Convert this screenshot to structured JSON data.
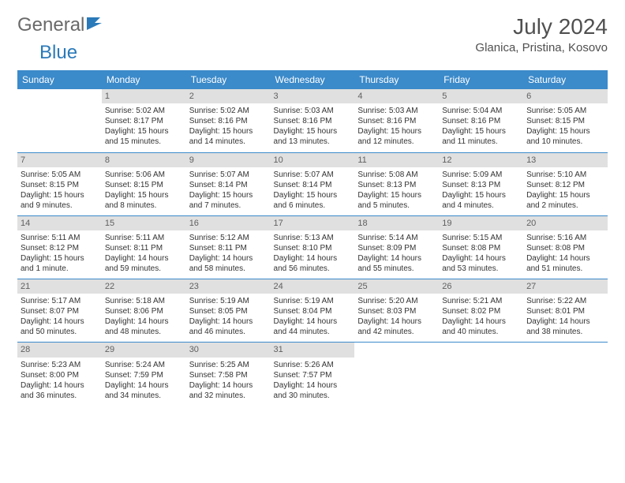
{
  "brand": {
    "part1": "General",
    "part2": "Blue"
  },
  "title": "July 2024",
  "location": "Glanica, Pristina, Kosovo",
  "colors": {
    "header_bg": "#3b8aca",
    "daynum_bg": "#e0e0e0",
    "text": "#333333",
    "border": "#3b8aca"
  },
  "day_headers": [
    "Sunday",
    "Monday",
    "Tuesday",
    "Wednesday",
    "Thursday",
    "Friday",
    "Saturday"
  ],
  "weeks": [
    [
      null,
      {
        "n": "1",
        "sr": "Sunrise: 5:02 AM",
        "ss": "Sunset: 8:17 PM",
        "d1": "Daylight: 15 hours",
        "d2": "and 15 minutes."
      },
      {
        "n": "2",
        "sr": "Sunrise: 5:02 AM",
        "ss": "Sunset: 8:16 PM",
        "d1": "Daylight: 15 hours",
        "d2": "and 14 minutes."
      },
      {
        "n": "3",
        "sr": "Sunrise: 5:03 AM",
        "ss": "Sunset: 8:16 PM",
        "d1": "Daylight: 15 hours",
        "d2": "and 13 minutes."
      },
      {
        "n": "4",
        "sr": "Sunrise: 5:03 AM",
        "ss": "Sunset: 8:16 PM",
        "d1": "Daylight: 15 hours",
        "d2": "and 12 minutes."
      },
      {
        "n": "5",
        "sr": "Sunrise: 5:04 AM",
        "ss": "Sunset: 8:16 PM",
        "d1": "Daylight: 15 hours",
        "d2": "and 11 minutes."
      },
      {
        "n": "6",
        "sr": "Sunrise: 5:05 AM",
        "ss": "Sunset: 8:15 PM",
        "d1": "Daylight: 15 hours",
        "d2": "and 10 minutes."
      }
    ],
    [
      {
        "n": "7",
        "sr": "Sunrise: 5:05 AM",
        "ss": "Sunset: 8:15 PM",
        "d1": "Daylight: 15 hours",
        "d2": "and 9 minutes."
      },
      {
        "n": "8",
        "sr": "Sunrise: 5:06 AM",
        "ss": "Sunset: 8:15 PM",
        "d1": "Daylight: 15 hours",
        "d2": "and 8 minutes."
      },
      {
        "n": "9",
        "sr": "Sunrise: 5:07 AM",
        "ss": "Sunset: 8:14 PM",
        "d1": "Daylight: 15 hours",
        "d2": "and 7 minutes."
      },
      {
        "n": "10",
        "sr": "Sunrise: 5:07 AM",
        "ss": "Sunset: 8:14 PM",
        "d1": "Daylight: 15 hours",
        "d2": "and 6 minutes."
      },
      {
        "n": "11",
        "sr": "Sunrise: 5:08 AM",
        "ss": "Sunset: 8:13 PM",
        "d1": "Daylight: 15 hours",
        "d2": "and 5 minutes."
      },
      {
        "n": "12",
        "sr": "Sunrise: 5:09 AM",
        "ss": "Sunset: 8:13 PM",
        "d1": "Daylight: 15 hours",
        "d2": "and 4 minutes."
      },
      {
        "n": "13",
        "sr": "Sunrise: 5:10 AM",
        "ss": "Sunset: 8:12 PM",
        "d1": "Daylight: 15 hours",
        "d2": "and 2 minutes."
      }
    ],
    [
      {
        "n": "14",
        "sr": "Sunrise: 5:11 AM",
        "ss": "Sunset: 8:12 PM",
        "d1": "Daylight: 15 hours",
        "d2": "and 1 minute."
      },
      {
        "n": "15",
        "sr": "Sunrise: 5:11 AM",
        "ss": "Sunset: 8:11 PM",
        "d1": "Daylight: 14 hours",
        "d2": "and 59 minutes."
      },
      {
        "n": "16",
        "sr": "Sunrise: 5:12 AM",
        "ss": "Sunset: 8:11 PM",
        "d1": "Daylight: 14 hours",
        "d2": "and 58 minutes."
      },
      {
        "n": "17",
        "sr": "Sunrise: 5:13 AM",
        "ss": "Sunset: 8:10 PM",
        "d1": "Daylight: 14 hours",
        "d2": "and 56 minutes."
      },
      {
        "n": "18",
        "sr": "Sunrise: 5:14 AM",
        "ss": "Sunset: 8:09 PM",
        "d1": "Daylight: 14 hours",
        "d2": "and 55 minutes."
      },
      {
        "n": "19",
        "sr": "Sunrise: 5:15 AM",
        "ss": "Sunset: 8:08 PM",
        "d1": "Daylight: 14 hours",
        "d2": "and 53 minutes."
      },
      {
        "n": "20",
        "sr": "Sunrise: 5:16 AM",
        "ss": "Sunset: 8:08 PM",
        "d1": "Daylight: 14 hours",
        "d2": "and 51 minutes."
      }
    ],
    [
      {
        "n": "21",
        "sr": "Sunrise: 5:17 AM",
        "ss": "Sunset: 8:07 PM",
        "d1": "Daylight: 14 hours",
        "d2": "and 50 minutes."
      },
      {
        "n": "22",
        "sr": "Sunrise: 5:18 AM",
        "ss": "Sunset: 8:06 PM",
        "d1": "Daylight: 14 hours",
        "d2": "and 48 minutes."
      },
      {
        "n": "23",
        "sr": "Sunrise: 5:19 AM",
        "ss": "Sunset: 8:05 PM",
        "d1": "Daylight: 14 hours",
        "d2": "and 46 minutes."
      },
      {
        "n": "24",
        "sr": "Sunrise: 5:19 AM",
        "ss": "Sunset: 8:04 PM",
        "d1": "Daylight: 14 hours",
        "d2": "and 44 minutes."
      },
      {
        "n": "25",
        "sr": "Sunrise: 5:20 AM",
        "ss": "Sunset: 8:03 PM",
        "d1": "Daylight: 14 hours",
        "d2": "and 42 minutes."
      },
      {
        "n": "26",
        "sr": "Sunrise: 5:21 AM",
        "ss": "Sunset: 8:02 PM",
        "d1": "Daylight: 14 hours",
        "d2": "and 40 minutes."
      },
      {
        "n": "27",
        "sr": "Sunrise: 5:22 AM",
        "ss": "Sunset: 8:01 PM",
        "d1": "Daylight: 14 hours",
        "d2": "and 38 minutes."
      }
    ],
    [
      {
        "n": "28",
        "sr": "Sunrise: 5:23 AM",
        "ss": "Sunset: 8:00 PM",
        "d1": "Daylight: 14 hours",
        "d2": "and 36 minutes."
      },
      {
        "n": "29",
        "sr": "Sunrise: 5:24 AM",
        "ss": "Sunset: 7:59 PM",
        "d1": "Daylight: 14 hours",
        "d2": "and 34 minutes."
      },
      {
        "n": "30",
        "sr": "Sunrise: 5:25 AM",
        "ss": "Sunset: 7:58 PM",
        "d1": "Daylight: 14 hours",
        "d2": "and 32 minutes."
      },
      {
        "n": "31",
        "sr": "Sunrise: 5:26 AM",
        "ss": "Sunset: 7:57 PM",
        "d1": "Daylight: 14 hours",
        "d2": "and 30 minutes."
      },
      null,
      null,
      null
    ]
  ]
}
